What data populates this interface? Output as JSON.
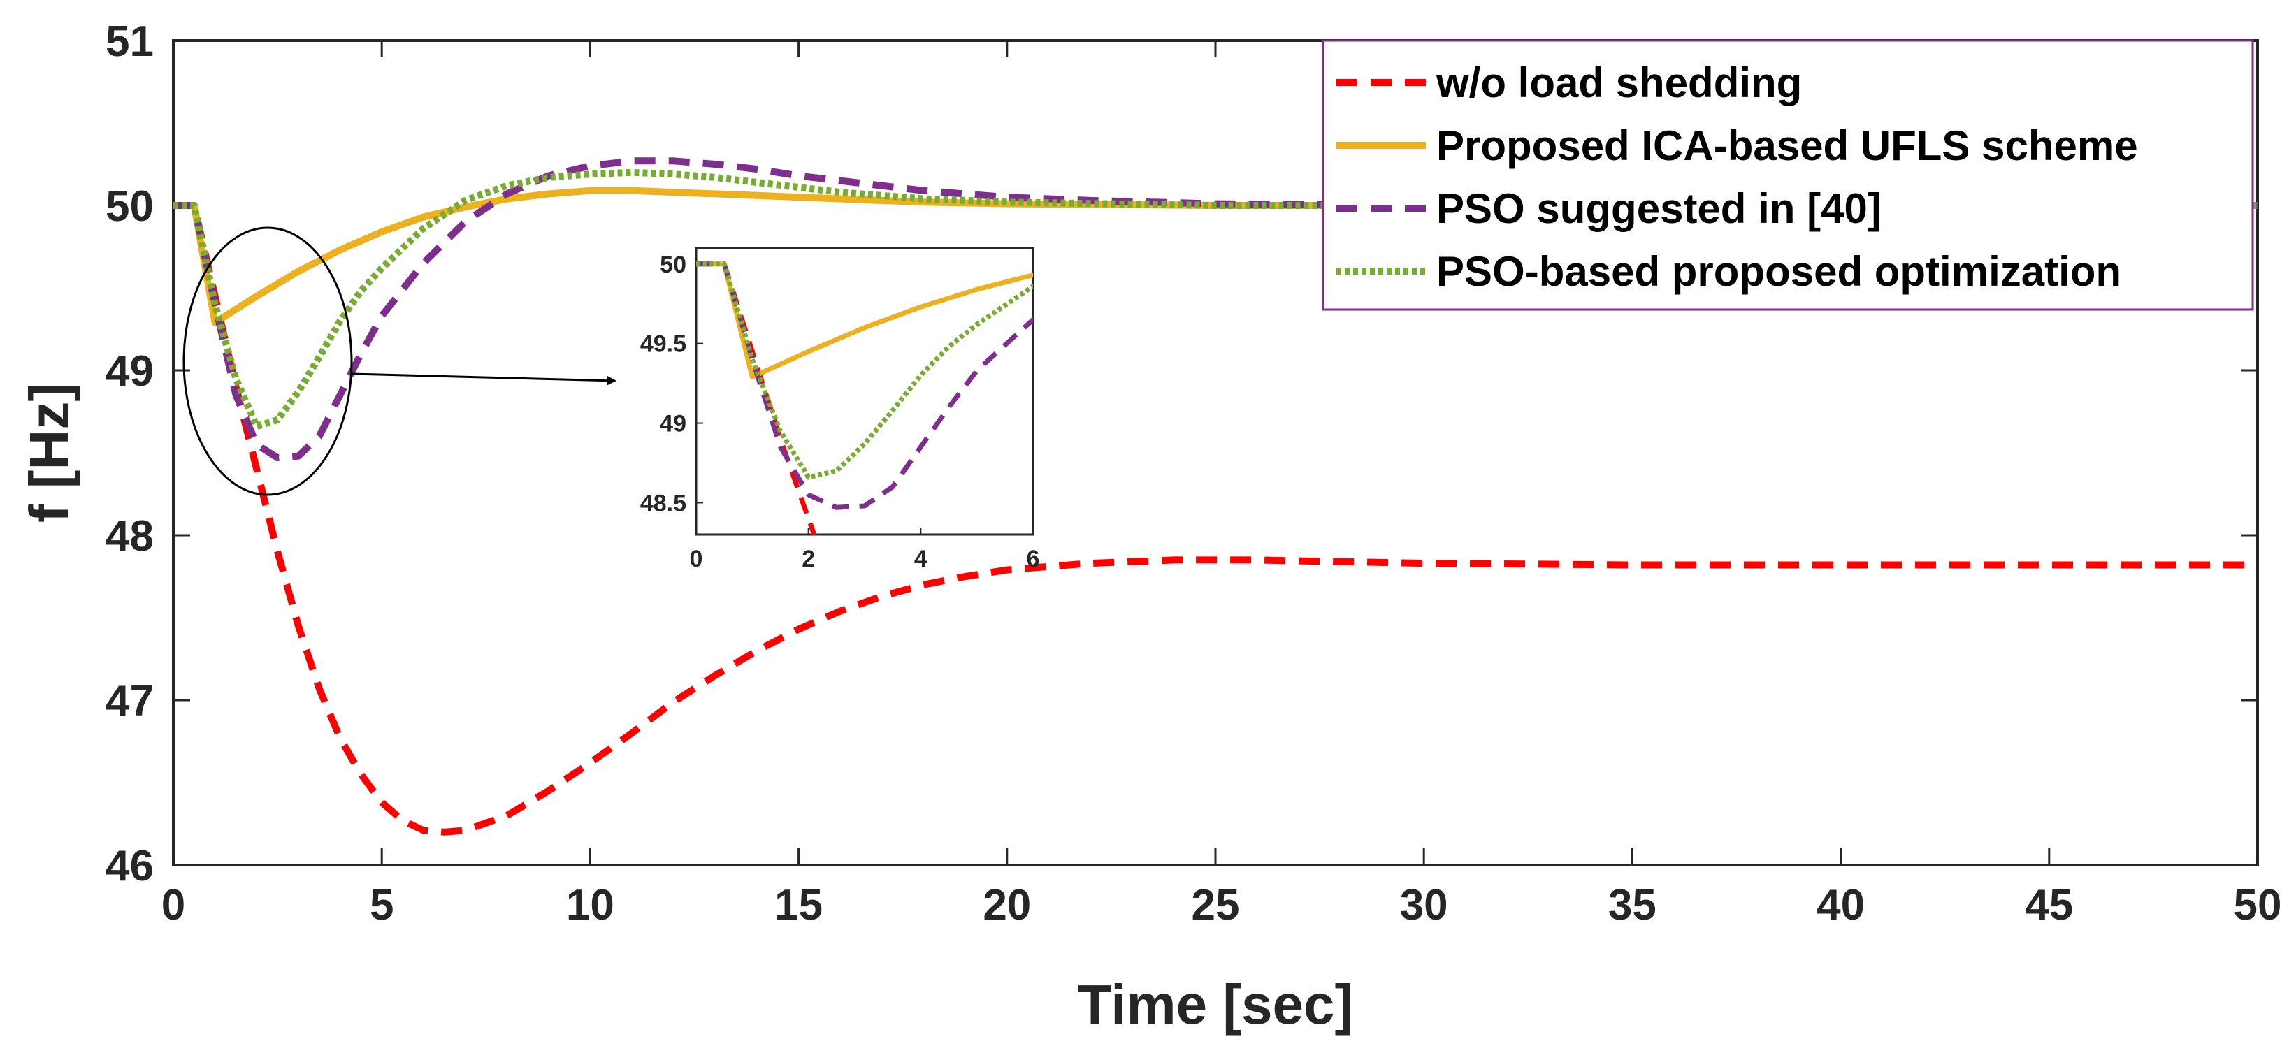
{
  "chart_data": {
    "type": "line",
    "title": "",
    "xlabel": "Time [sec]",
    "ylabel": "f [Hz]",
    "xlim": [
      0,
      50
    ],
    "ylim": [
      46,
      51
    ],
    "xticks": [
      0,
      5,
      10,
      15,
      20,
      25,
      30,
      35,
      40,
      45,
      50
    ],
    "yticks": [
      46,
      47,
      48,
      49,
      50,
      51
    ],
    "grid": false,
    "legend_position": "top-right",
    "series": [
      {
        "name": "w/o load shedding",
        "color": "#FF0000",
        "style": "dashed",
        "x": [
          0,
          0.5,
          1,
          1.5,
          2,
          2.5,
          3,
          3.5,
          4,
          4.5,
          5,
          5.5,
          6,
          6.5,
          7,
          8,
          9,
          10,
          11,
          12,
          13,
          14,
          15,
          16,
          17,
          18,
          19,
          20,
          21,
          22,
          23,
          24,
          25,
          26,
          28,
          30,
          35,
          40,
          45,
          50
        ],
        "y": [
          50,
          50,
          49.45,
          48.9,
          48.4,
          47.9,
          47.45,
          47.07,
          46.77,
          46.55,
          46.38,
          46.27,
          46.21,
          46.2,
          46.21,
          46.3,
          46.45,
          46.62,
          46.8,
          46.99,
          47.15,
          47.3,
          47.43,
          47.54,
          47.63,
          47.7,
          47.75,
          47.79,
          47.81,
          47.83,
          47.84,
          47.85,
          47.85,
          47.85,
          47.84,
          47.83,
          47.82,
          47.82,
          47.82,
          47.82
        ]
      },
      {
        "name": "Proposed ICA-based UFLS scheme",
        "color": "#EDB120",
        "style": "solid",
        "x": [
          0,
          0.5,
          1,
          1.5,
          2,
          3,
          4,
          5,
          6,
          7,
          8,
          9,
          10,
          11,
          12,
          14,
          16,
          18,
          20,
          25,
          30,
          35,
          40,
          45,
          50
        ],
        "y": [
          50,
          50,
          49.29,
          49.37,
          49.45,
          49.6,
          49.73,
          49.84,
          49.93,
          49.99,
          50.04,
          50.07,
          50.09,
          50.09,
          50.08,
          50.06,
          50.04,
          50.02,
          50.01,
          50.0,
          50.0,
          50.0,
          50.0,
          50.0,
          50.0
        ]
      },
      {
        "name": "PSO suggested in [40]",
        "color": "#7E2F8E",
        "style": "dashed",
        "x": [
          0,
          0.5,
          1,
          1.5,
          2,
          2.5,
          3,
          3.5,
          4,
          4.5,
          5,
          6,
          7,
          8,
          9,
          10,
          11,
          12,
          13,
          14,
          15,
          16,
          18,
          20,
          22,
          25,
          30,
          35,
          40,
          45,
          50
        ],
        "y": [
          50,
          50,
          49.4,
          48.85,
          48.55,
          48.47,
          48.48,
          48.6,
          48.85,
          49.1,
          49.33,
          49.65,
          49.9,
          50.07,
          50.18,
          50.24,
          50.27,
          50.27,
          50.25,
          50.22,
          50.18,
          50.15,
          50.09,
          50.05,
          50.03,
          50.01,
          50.0,
          50.0,
          50.0,
          50.0,
          50.0
        ]
      },
      {
        "name": "PSO-based proposed optimization",
        "color": "#77AC30",
        "style": "dotted",
        "x": [
          0,
          0.5,
          1,
          1.5,
          2,
          2.5,
          3,
          3.5,
          4,
          4.5,
          5,
          6,
          7,
          8,
          9,
          10,
          11,
          12,
          13,
          14,
          16,
          18,
          20,
          25,
          30,
          35,
          40,
          45,
          50
        ],
        "y": [
          50,
          50,
          49.4,
          48.95,
          48.66,
          48.7,
          48.87,
          49.08,
          49.3,
          49.48,
          49.62,
          49.86,
          50.03,
          50.12,
          50.17,
          50.19,
          50.2,
          50.19,
          50.17,
          50.14,
          50.08,
          50.04,
          50.02,
          50.0,
          50.0,
          50.0,
          50.0,
          50.0,
          50.0
        ]
      }
    ],
    "inset": {
      "xlim": [
        0,
        6
      ],
      "ylim": [
        48.3,
        50.1
      ],
      "xticks": [
        0,
        2,
        4,
        6
      ],
      "yticks": [
        48.5,
        49,
        49.5,
        50
      ],
      "ytick_labels": [
        "48.5",
        "49",
        "49.5",
        "50"
      ],
      "annotation": "zoomed view of initial frequency dip (0–6 sec)"
    }
  }
}
